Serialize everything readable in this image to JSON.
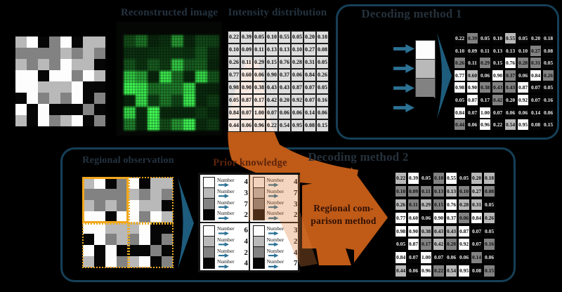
{
  "labels": {
    "reconstructed": "Reconstructed image",
    "intensity": "Intensity distribution",
    "decoding1": "Decoding method 1",
    "decoding2": "Decoding method 2",
    "regional_observation": "Regional observation",
    "prior_knowledge": "Prior knowledge",
    "comparison_line1": "Regional com-",
    "comparison_line2": "parison method",
    "number_label": "Number"
  },
  "colors": {
    "level_fills": [
      "#060606",
      "#828282",
      "#b9b9b9",
      "#fdfdfd"
    ],
    "accent_orange": "#bf5a17",
    "orange_tint": "rgba(222,128,58,0.32)",
    "steel_blue": "#2b7295",
    "wedge_blue": "#1d5c7c",
    "box_border": "#153f57",
    "quadrant_yellow": "#f2a71d",
    "slate_title": "#243340",
    "maroon_title": "#5d230b",
    "arrow_text": "#301004"
  },
  "intensity_matrix": [
    [
      "0.22",
      "0.39",
      "0.05",
      "0.10",
      "0.55",
      "0.05",
      "0.20",
      "0.18"
    ],
    [
      "0.10",
      "0.09",
      "0.11",
      "0.13",
      "0.13",
      "0.10",
      "0.27",
      "0.08"
    ],
    [
      "0.26",
      "0.11",
      "0.29",
      "0.15",
      "0.76",
      "0.28",
      "0.31",
      "0.05"
    ],
    [
      "0.77",
      "0.60",
      "0.06",
      "0.90",
      "0.37",
      "0.06",
      "0.84",
      "0.26"
    ],
    [
      "0.98",
      "0.90",
      "0.38",
      "0.43",
      "0.43",
      "0.87",
      "0.07",
      "0.05"
    ],
    [
      "0.05",
      "0.87",
      "0.17",
      "0.42",
      "0.20",
      "0.92",
      "0.07",
      "0.16"
    ],
    [
      "0.84",
      "0.07",
      "1.00",
      "0.07",
      "0.06",
      "0.06",
      "0.14",
      "0.06"
    ],
    [
      "0.44",
      "0.06",
      "0.96",
      "0.22",
      "0.54",
      "0.95",
      "0.08",
      "0.15"
    ]
  ],
  "method1_levels": [
    [
      0,
      1,
      0,
      0,
      2,
      0,
      0,
      0
    ],
    [
      0,
      0,
      0,
      0,
      0,
      0,
      1,
      0
    ],
    [
      1,
      0,
      1,
      0,
      3,
      1,
      1,
      0
    ],
    [
      3,
      2,
      0,
      3,
      1,
      0,
      3,
      1
    ],
    [
      3,
      3,
      1,
      1,
      1,
      3,
      0,
      0
    ],
    [
      0,
      3,
      0,
      1,
      0,
      3,
      0,
      0
    ],
    [
      3,
      0,
      3,
      0,
      0,
      0,
      0,
      0
    ],
    [
      1,
      0,
      3,
      0,
      2,
      3,
      0,
      0
    ]
  ],
  "method2_levels": [
    [
      2,
      3,
      0,
      1,
      3,
      0,
      2,
      2
    ],
    [
      1,
      1,
      1,
      1,
      2,
      1,
      2,
      1
    ],
    [
      2,
      1,
      2,
      1,
      3,
      2,
      2,
      0
    ],
    [
      3,
      3,
      0,
      3,
      3,
      1,
      3,
      2
    ],
    [
      3,
      3,
      2,
      2,
      2,
      3,
      0,
      0
    ],
    [
      0,
      3,
      1,
      2,
      1,
      3,
      0,
      1
    ],
    [
      3,
      0,
      3,
      0,
      0,
      0,
      1,
      0
    ],
    [
      2,
      0,
      3,
      1,
      2,
      3,
      0,
      1
    ]
  ],
  "truth_levels": [
    [
      2,
      3,
      0,
      1,
      3,
      0,
      2,
      2
    ],
    [
      1,
      1,
      1,
      1,
      2,
      1,
      2,
      1
    ],
    [
      2,
      1,
      2,
      1,
      3,
      2,
      2,
      0
    ],
    [
      3,
      3,
      0,
      3,
      3,
      1,
      3,
      2
    ],
    [
      3,
      3,
      2,
      2,
      2,
      3,
      0,
      0
    ],
    [
      0,
      3,
      1,
      2,
      1,
      3,
      0,
      1
    ],
    [
      3,
      0,
      3,
      0,
      0,
      0,
      1,
      0
    ],
    [
      2,
      0,
      3,
      1,
      2,
      3,
      0,
      1
    ]
  ],
  "stack_levels": [
    3,
    2,
    1,
    0
  ],
  "prior_knowledge": {
    "panels": [
      {
        "position": "top-left",
        "counts": [
          4,
          3,
          7,
          2
        ]
      },
      {
        "position": "top-right",
        "counts": [
          4,
          7,
          3,
          2
        ]
      },
      {
        "position": "bottom-left",
        "counts": [
          6,
          4,
          2,
          4
        ]
      },
      {
        "position": "bottom-right",
        "counts": [
          3,
          2,
          4,
          7
        ]
      }
    ],
    "bar_levels": [
      3,
      2,
      1,
      0
    ]
  }
}
